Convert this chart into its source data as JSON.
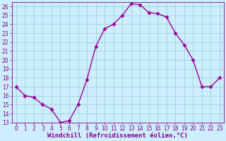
{
  "x": [
    0,
    1,
    2,
    3,
    4,
    5,
    6,
    7,
    8,
    9,
    10,
    11,
    12,
    13,
    14,
    15,
    16,
    17,
    18,
    19,
    20,
    21,
    22,
    23
  ],
  "y": [
    17.0,
    16.0,
    15.8,
    15.0,
    14.5,
    13.0,
    13.2,
    15.0,
    17.8,
    21.5,
    23.5,
    24.0,
    25.0,
    26.3,
    26.2,
    25.3,
    25.2,
    24.8,
    23.0,
    21.7,
    20.0,
    17.0,
    17.0,
    18.0
  ],
  "line_color": "#990099",
  "marker": "D",
  "marker_size": 2.5,
  "background_color": "#cceeff",
  "grid_color": "#99cccc",
  "xlabel": "Windchill (Refroidissement éolien,°C)",
  "ylim": [
    13,
    26.5
  ],
  "xlim": [
    -0.5,
    23.5
  ],
  "yticks": [
    13,
    14,
    15,
    16,
    17,
    18,
    19,
    20,
    21,
    22,
    23,
    24,
    25,
    26
  ],
  "xticks": [
    0,
    1,
    2,
    3,
    4,
    5,
    6,
    7,
    8,
    9,
    10,
    11,
    12,
    13,
    14,
    15,
    16,
    17,
    18,
    19,
    20,
    21,
    22,
    23
  ],
  "tick_color": "#880088",
  "label_fontsize": 6.5,
  "tick_fontsize": 5.5,
  "linewidth": 1.0
}
